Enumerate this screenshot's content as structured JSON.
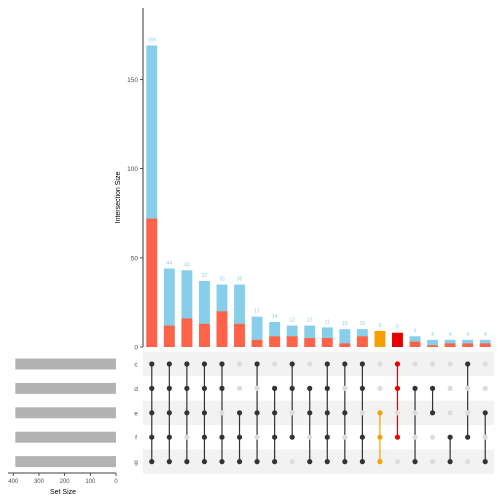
{
  "chart_data": {
    "type": "bar",
    "subtype": "upset",
    "title": "",
    "ylabel": "Intersection Size",
    "set_size_label": "Set Size",
    "ylim": [
      0,
      190
    ],
    "y_ticks": [
      0,
      50,
      100,
      150
    ],
    "set_size_lim": [
      0,
      420
    ],
    "set_size_ticks": [
      400,
      300,
      200,
      100,
      0
    ],
    "sets": [
      "c",
      "d",
      "e",
      "f",
      "g"
    ],
    "set_sizes": [
      392,
      392,
      392,
      392,
      392
    ],
    "intersections": [
      {
        "total": 169,
        "highlight": 72,
        "label": "169",
        "members": [
          "c",
          "d",
          "e",
          "f",
          "g"
        ]
      },
      {
        "total": 44,
        "highlight": 12,
        "label": "44",
        "members": [
          "c",
          "d",
          "e",
          "f",
          "g"
        ]
      },
      {
        "total": 43,
        "highlight": 16,
        "label": "43",
        "members": [
          "c",
          "d",
          "e",
          "g"
        ]
      },
      {
        "total": 37,
        "highlight": 13,
        "label": "37",
        "members": [
          "c",
          "d",
          "e",
          "f",
          "g"
        ]
      },
      {
        "total": 35,
        "highlight": 20,
        "label": "35",
        "members": [
          "c",
          "d",
          "f",
          "g"
        ]
      },
      {
        "total": 35,
        "highlight": 13,
        "label": "35",
        "members": [
          "e",
          "f",
          "g"
        ]
      },
      {
        "total": 17,
        "highlight": 4,
        "label": "17",
        "members": [
          "c",
          "e",
          "g"
        ]
      },
      {
        "total": 14,
        "highlight": 6,
        "label": "14",
        "members": [
          "d",
          "e",
          "f",
          "g"
        ]
      },
      {
        "total": 12,
        "highlight": 6,
        "label": "12",
        "members": [
          "c",
          "d",
          "f"
        ]
      },
      {
        "total": 12,
        "highlight": 5,
        "label": "12",
        "members": [
          "d",
          "e",
          "g"
        ]
      },
      {
        "total": 11,
        "highlight": 5,
        "label": "11",
        "members": [
          "c",
          "d",
          "e",
          "f",
          "g"
        ]
      },
      {
        "total": 10,
        "highlight": 2,
        "label": "10",
        "members": [
          "c",
          "e",
          "g"
        ]
      },
      {
        "total": 10,
        "highlight": 6,
        "label": "10",
        "members": [
          "c",
          "d",
          "f",
          "g"
        ]
      },
      {
        "total": 9,
        "highlight": 0,
        "label": "9",
        "members": [
          "e",
          "f",
          "g"
        ],
        "color": "#f5a000"
      },
      {
        "total": 8,
        "highlight": 0,
        "label": "8",
        "members": [
          "c",
          "d",
          "f"
        ],
        "color": "#e80000"
      },
      {
        "total": 6,
        "highlight": 3,
        "label": "6",
        "members": [
          "d",
          "g"
        ]
      },
      {
        "total": 4,
        "highlight": 1,
        "label": "4",
        "members": [
          "d",
          "e"
        ]
      },
      {
        "total": 4,
        "highlight": 2,
        "label": "4",
        "members": [
          "f",
          "g"
        ]
      },
      {
        "total": 4,
        "highlight": 2,
        "label": "4",
        "members": [
          "c",
          "f"
        ]
      },
      {
        "total": 4,
        "highlight": 2,
        "label": "4",
        "members": [
          "e",
          "g"
        ]
      }
    ],
    "colors": {
      "bar_total": "#87ceeb",
      "bar_highlight": "#ff6347",
      "dot_active": "#333333",
      "dot_inactive": "#dcdcdc",
      "stripe": "#f2f2f2",
      "set_bar": "#b3b3b3",
      "text": "#4d4d4d",
      "value_label": "#87ceeb"
    }
  }
}
